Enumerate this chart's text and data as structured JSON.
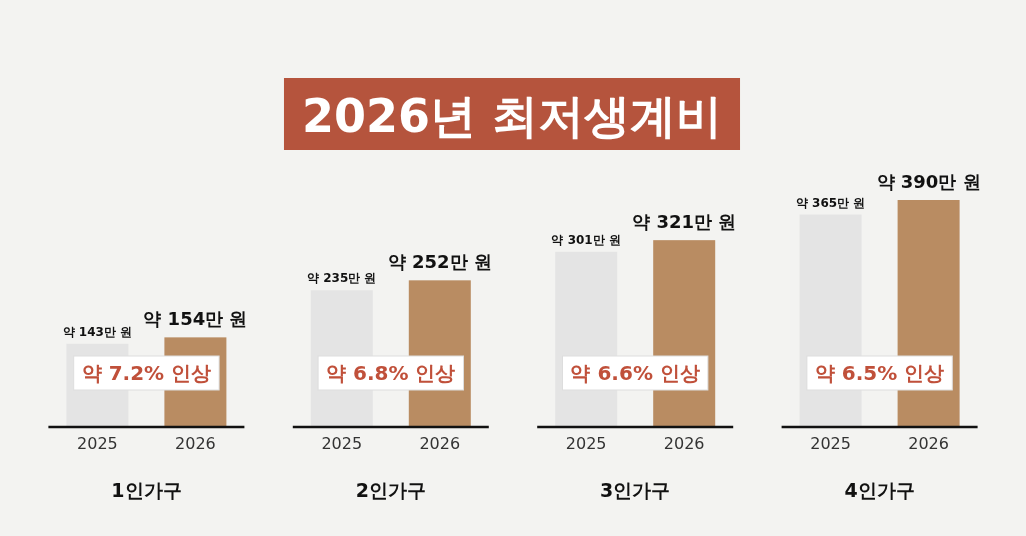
{
  "chart_data": [
    {
      "type": "other",
      "title": "2026년 최저생계비"
    },
    {
      "type": "bar",
      "xlabel": "1인가구",
      "categories": [
        "2025",
        "2026"
      ],
      "values": [
        143,
        154
      ],
      "colors": [
        "#e4e4e4",
        "#b98c62"
      ],
      "value_labels": [
        "약 143만 원",
        "약 154만 원"
      ],
      "annotations": [
        "약 7.2% 인상"
      ],
      "tick_labels": "x"
    },
    {
      "type": "bar",
      "xlabel": "2인가구",
      "categories": [
        "2025",
        "2026"
      ],
      "values": [
        235,
        252
      ],
      "colors": [
        "#e4e4e4",
        "#b98c62"
      ],
      "value_labels": [
        "약 235만 원",
        "약 252만 원"
      ],
      "annotations": [
        "약 6.8% 인상"
      ],
      "tick_labels": "x"
    },
    {
      "type": "bar",
      "xlabel": "3인가구",
      "categories": [
        "2025",
        "2026"
      ],
      "values": [
        301,
        321
      ],
      "colors": [
        "#e4e4e4",
        "#b98c62"
      ],
      "value_labels": [
        "약 301만 원",
        "약 321만 원"
      ],
      "annotations": [
        "약 6.6% 인상"
      ],
      "tick_labels": "x"
    },
    {
      "type": "bar",
      "xlabel": "4인가구",
      "categories": [
        "2025",
        "2026"
      ],
      "values": [
        365,
        390
      ],
      "colors": [
        "#e4e4e4",
        "#b98c62"
      ],
      "value_labels": [
        "약 365만 원",
        "약 390만 원"
      ],
      "annotations": [
        "약 6.5% 인상"
      ],
      "tick_labels": "x"
    }
  ]
}
